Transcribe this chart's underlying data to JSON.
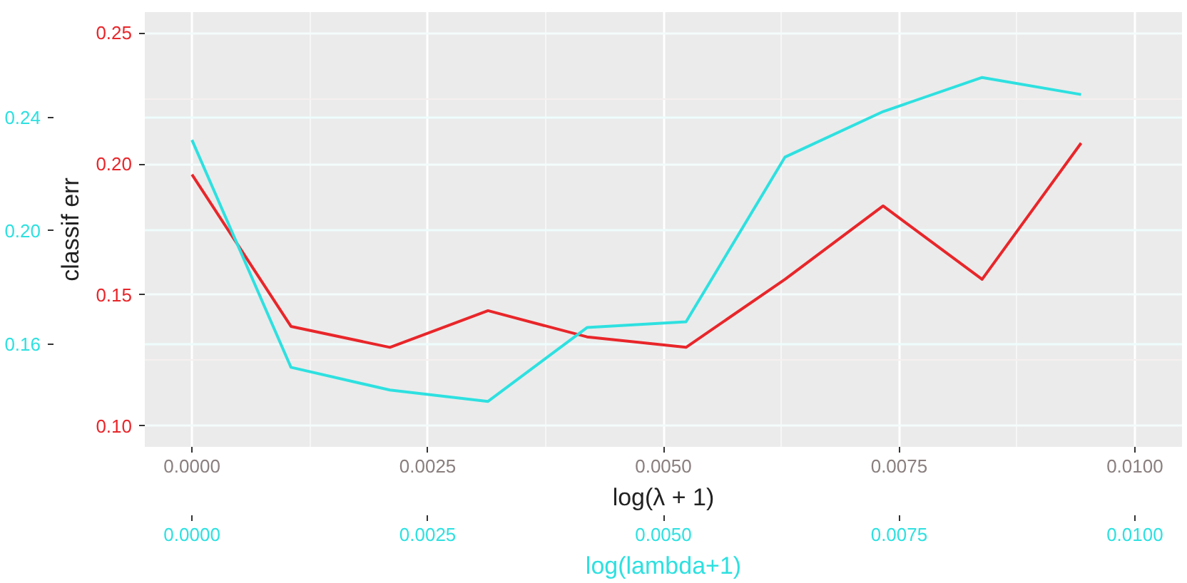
{
  "chart_data": {
    "type": "line",
    "ylabel": "classif err",
    "xlabel": "log(λ + 1)",
    "x2label": "log(lambda+1)",
    "x": [
      0,
      0.00105,
      0.0021,
      0.00314,
      0.00419,
      0.00524,
      0.00629,
      0.00733,
      0.00838,
      0.00943
    ],
    "series": [
      {
        "color": "#e8262a",
        "values": [
          0.196,
          0.138,
          0.13,
          0.144,
          0.134,
          0.13,
          0.156,
          0.184,
          0.156,
          0.208
        ]
      },
      {
        "color": "#2ee0e0",
        "axis": "y2",
        "values": [
          0.232,
          0.152,
          0.144,
          0.14,
          0.166,
          0.168,
          0.226,
          0.242,
          0.254,
          0.248
        ]
      }
    ],
    "xlim": [
      -0.0005,
      0.0105
    ],
    "xticks": [
      {
        "value": 0,
        "label": "0.0000"
      },
      {
        "value": 0.0025,
        "label": "0.0025"
      },
      {
        "value": 0.005,
        "label": "0.0050"
      },
      {
        "value": 0.0075,
        "label": "0.0075"
      },
      {
        "value": 0.01,
        "label": "0.0100"
      }
    ],
    "x2lim": [
      -0.0005,
      0.0105
    ],
    "x2ticks": [
      {
        "value": 0,
        "label": "0.0000"
      },
      {
        "value": 0.0025,
        "label": "0.0025"
      },
      {
        "value": 0.005,
        "label": "0.0050"
      },
      {
        "value": 0.0075,
        "label": "0.0075"
      },
      {
        "value": 0.01,
        "label": "0.0100"
      }
    ],
    "ylim": [
      0.092,
      0.258
    ],
    "yticks": [
      {
        "value": 0.1,
        "label": "0.10"
      },
      {
        "value": 0.15,
        "label": "0.15"
      },
      {
        "value": 0.2,
        "label": "0.20"
      },
      {
        "value": 0.25,
        "label": "0.25"
      }
    ],
    "y2lim": [
      0.124,
      0.277
    ],
    "y2ticks": [
      {
        "value": 0.16,
        "label": "0.16"
      },
      {
        "value": 0.2,
        "label": "0.20"
      },
      {
        "value": 0.24,
        "label": "0.24"
      }
    ],
    "grid": true
  }
}
